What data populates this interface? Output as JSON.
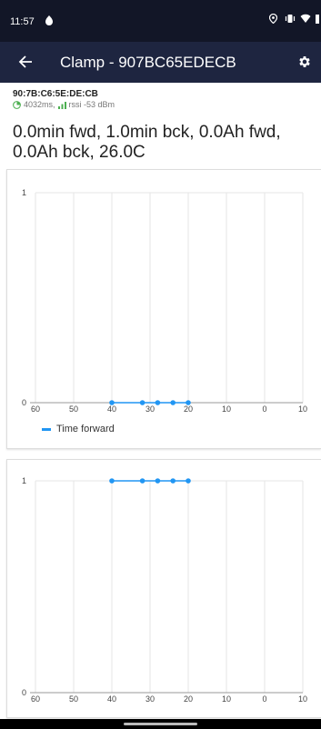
{
  "status_bar": {
    "time": "11:57",
    "icons": [
      "location-icon",
      "vibrate-icon",
      "wifi-icon",
      "battery-icon"
    ]
  },
  "app_bar": {
    "title": "Clamp - 907BC65EDECB",
    "back_icon": "arrow-left-icon",
    "settings_icon": "gear-icon",
    "background": "#1e2540"
  },
  "device": {
    "mac": "90:7B:C6:5E:DE:CB",
    "interval": "4032ms,",
    "rssi": "rssi -53 dBm"
  },
  "summary": "0.0min fwd, 1.0min bck, 0.0Ah fwd, 0.0Ah bck, 26.0C",
  "chart_data": [
    {
      "type": "line",
      "xlim": [
        60,
        -10
      ],
      "ylim": [
        0,
        1
      ],
      "x_ticks": [
        "60",
        "50",
        "40",
        "30",
        "20",
        "10",
        "0",
        "10"
      ],
      "y_ticks": [
        "0",
        "1"
      ],
      "grid": true,
      "legend": "bottom-left",
      "series": [
        {
          "name": "Time forward",
          "color": "#2196f3",
          "points": [
            {
              "x": 40,
              "y": 0
            },
            {
              "x": 32,
              "y": 0
            },
            {
              "x": 28,
              "y": 0
            },
            {
              "x": 24,
              "y": 0
            },
            {
              "x": 20,
              "y": 0
            }
          ]
        }
      ]
    },
    {
      "type": "line",
      "xlim": [
        60,
        -10
      ],
      "ylim": [
        0,
        1
      ],
      "x_ticks": [
        "60",
        "50",
        "40",
        "30",
        "20",
        "10",
        "0",
        "10"
      ],
      "y_ticks": [
        "0",
        "1"
      ],
      "grid": true,
      "legend": "none",
      "series": [
        {
          "color": "#2196f3",
          "points": [
            {
              "x": 40,
              "y": 1
            },
            {
              "x": 32,
              "y": 1
            },
            {
              "x": 28,
              "y": 1
            },
            {
              "x": 24,
              "y": 1
            },
            {
              "x": 20,
              "y": 1
            }
          ]
        }
      ]
    }
  ]
}
